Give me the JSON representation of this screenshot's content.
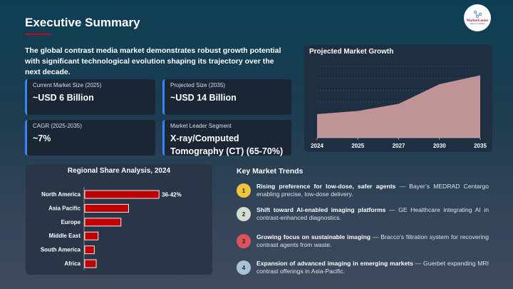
{
  "header": {
    "title": "Executive Summary",
    "logo_text": "MarketGenies",
    "logo_tagline": "Ideas to Innovation"
  },
  "intro": "The global contrast media market demonstrates robust growth potential with significant technological evolution shaping its trajectory over the next decade.",
  "cards": [
    {
      "label": "Current Market Size (2025)",
      "value": "~USD 6 Billion"
    },
    {
      "label": "Projected Size (2035)",
      "value": "~USD 14 Billion"
    },
    {
      "label": "CAGR (2025-2035)",
      "value": "~7%"
    },
    {
      "label": "Market Leader Segment",
      "value": "X-ray/Computed Tomography (CT)  (65-70%)"
    }
  ],
  "trends": {
    "title": "Key Market Trends",
    "items": [
      {
        "num": "1",
        "color": "#f2c53d",
        "bold": "Rising preference for low-dose, safer agents",
        "text": " — Bayer’s MEDRAD Centargo enabling precise, low-dose delivery."
      },
      {
        "num": "2",
        "color": "#d5dcd0",
        "bold": "Shift toward AI-enabled imaging platforms",
        "text": " — GE Healthcare integrating AI in contrast-enhanced diagnostics."
      },
      {
        "num": "3",
        "color": "#d9545c",
        "bold": "Growing focus on sustainable imaging",
        "text": " — Bracco’s filtration system for recovering contrast agents from waste."
      },
      {
        "num": "4",
        "color": "#a6c3d6",
        "bold": "Expansion of advanced imaging in emerging markets",
        "text": " — Guerbet expanding MRI contrast offerings in Asia-Pacific."
      }
    ]
  },
  "chart_data": [
    {
      "type": "area",
      "title": "Projected Market Growth",
      "categories": [
        "2024",
        "2025",
        "2027",
        "2030",
        "2035"
      ],
      "values": [
        5.3,
        6,
        7.6,
        12,
        14
      ],
      "ylim": [
        0,
        16
      ],
      "grid": true,
      "fill": "#c09497"
    },
    {
      "type": "bar",
      "orientation": "horizontal",
      "title": "Regional Share Analysis, 2024",
      "categories": [
        "North America",
        "Asia Pacific",
        "Europe",
        "Middle East",
        "South America",
        "Africa"
      ],
      "values": [
        39,
        23,
        19,
        7,
        5,
        6
      ],
      "data_labels": [
        "36-42%",
        "",
        "",
        "",
        "",
        ""
      ],
      "color": "#c00000"
    }
  ]
}
